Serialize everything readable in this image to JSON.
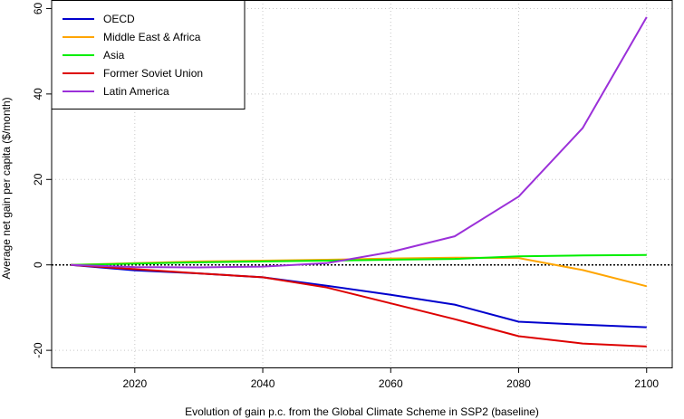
{
  "chart_data": {
    "type": "line",
    "title": "",
    "xlabel": "Evolution of  gain  p.c. from the Global Climate Scheme in SSP2 (baseline)",
    "ylabel": "Average net gain per capita ($/month)",
    "xlim": [
      2007,
      2104
    ],
    "ylim": [
      -24,
      62
    ],
    "x_ticks": [
      2020,
      2040,
      2060,
      2080,
      2100
    ],
    "y_ticks": [
      -20,
      0,
      20,
      40,
      60
    ],
    "x_tick_labels": [
      "2020",
      "2040",
      "2060",
      "2080",
      "2100"
    ],
    "y_tick_labels": [
      "-20",
      "0",
      "20",
      "40",
      "60"
    ],
    "grid": true,
    "zero_line": true,
    "legend_position": "top-left",
    "x": [
      2010,
      2020,
      2030,
      2040,
      2050,
      2060,
      2070,
      2080,
      2090,
      2100
    ],
    "series": [
      {
        "name": "OECD",
        "color": "#0000cd",
        "values": [
          0,
          -1.3,
          -2.0,
          -2.9,
          -4.9,
          -7.0,
          -9.3,
          -13.3,
          -14.0,
          -14.6
        ]
      },
      {
        "name": "Middle East & Africa",
        "color": "#ffa500",
        "values": [
          0,
          0.4,
          0.8,
          1.0,
          1.2,
          1.5,
          1.7,
          1.6,
          -1.2,
          -5.0
        ]
      },
      {
        "name": "Asia",
        "color": "#00ee00",
        "values": [
          0,
          0.3,
          0.6,
          0.8,
          1.0,
          1.2,
          1.4,
          2.0,
          2.2,
          2.3
        ]
      },
      {
        "name": "Former Soviet Union",
        "color": "#dd0000",
        "values": [
          0,
          -1.0,
          -2.0,
          -2.9,
          -5.3,
          -9.0,
          -12.7,
          -16.7,
          -18.4,
          -19.1
        ]
      },
      {
        "name": "Latin America",
        "color": "#9b30d9",
        "values": [
          0,
          -0.5,
          -0.6,
          -0.4,
          0.4,
          3.0,
          6.7,
          16.0,
          32.0,
          58.0
        ]
      }
    ]
  }
}
